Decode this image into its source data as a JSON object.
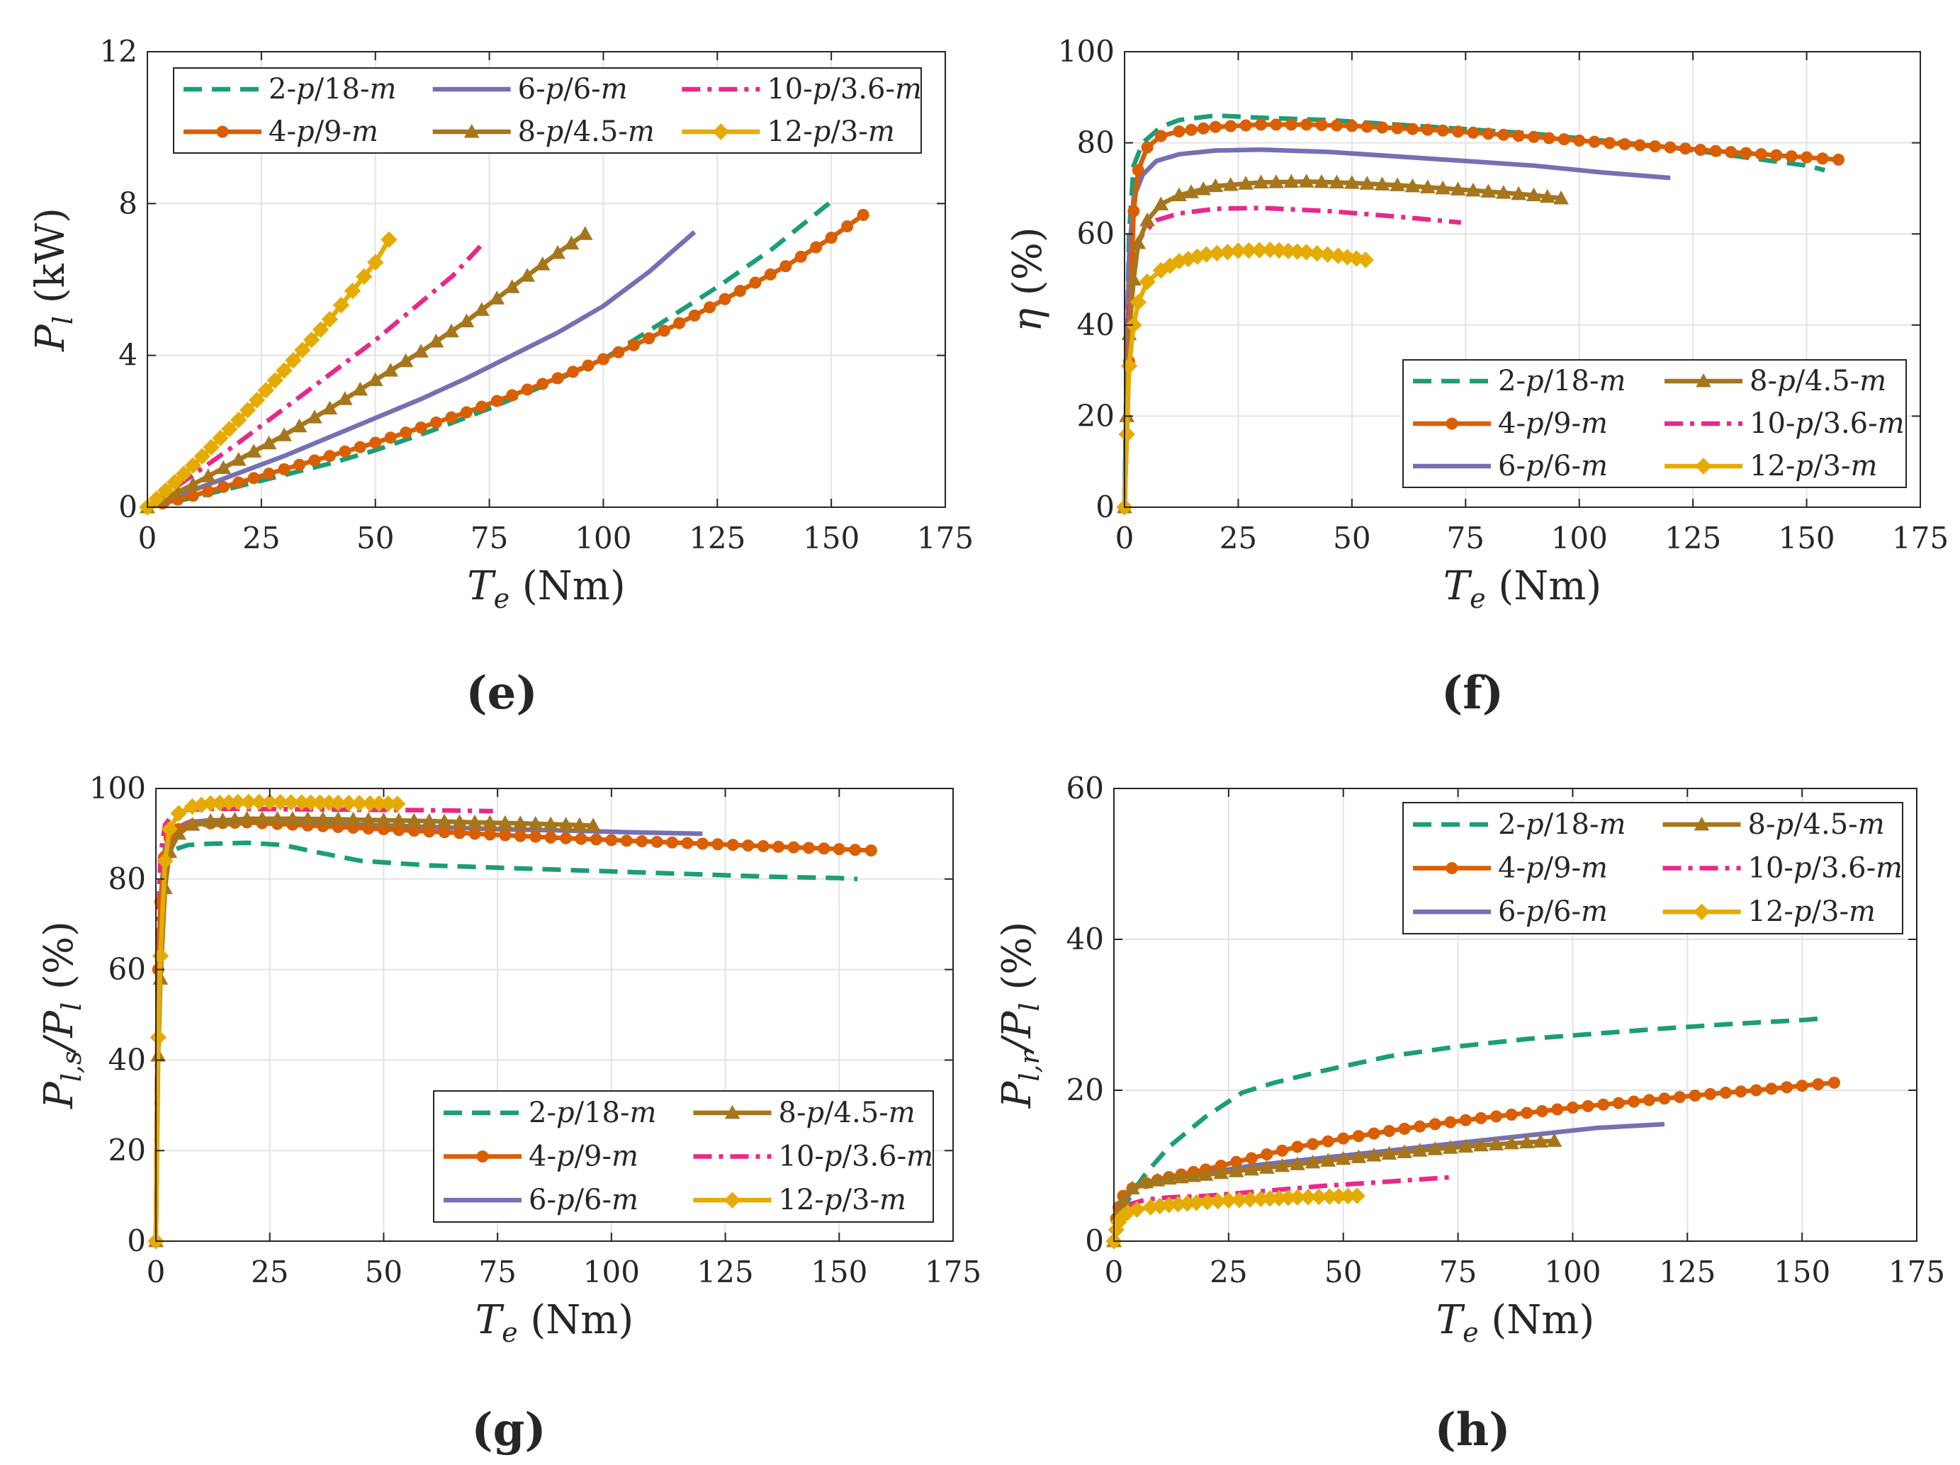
{
  "colors": {
    "2-p/18-m": "#1b9e77",
    "4-p/9-m": "#d95f02",
    "6-p/6-m": "#7570b3",
    "8-p/4.5-m": "#a6761d",
    "10-p/3.6-m": "#e7298a",
    "12-p/3-m": "#e6ab02"
  },
  "chart_data": [
    {
      "id": "e",
      "panel_label": "(e)",
      "type": "line",
      "ylabel_main": "P",
      "ylabel_sub": "l",
      "ylabel_unit": "(kW)",
      "xlabel_main": "T",
      "xlabel_sub": "e",
      "xlabel_unit": "(Nm)",
      "xlim": [
        0,
        175
      ],
      "ylim": [
        0,
        12
      ],
      "xticks": [
        0,
        25,
        50,
        75,
        100,
        125,
        150,
        175
      ],
      "yticks": [
        0,
        4,
        8,
        12
      ],
      "grid": true,
      "legend_loc": "top",
      "legend_columns": 3,
      "legend_order": [
        "2-p/18-m",
        "4-p/9-m",
        "6-p/6-m",
        "8-p/4.5-m",
        "10-p/3.6-m",
        "12-p/3-m"
      ],
      "series": [
        {
          "name": "2-p/18-m",
          "style": "dash",
          "x": [
            0,
            10,
            25,
            40,
            50,
            62,
            75,
            87,
            100,
            112,
            125,
            137,
            151
          ],
          "y": [
            0,
            0.25,
            0.7,
            1.15,
            1.5,
            2.0,
            2.6,
            3.2,
            3.9,
            4.8,
            5.8,
            6.8,
            8.15
          ]
        },
        {
          "name": "6-p/6-m",
          "style": "solid",
          "x": [
            0,
            10,
            20,
            30,
            40,
            50,
            60,
            70,
            80,
            90,
            100,
            110,
            120
          ],
          "y": [
            0,
            0.45,
            0.9,
            1.35,
            1.85,
            2.35,
            2.85,
            3.4,
            4.0,
            4.6,
            5.3,
            6.2,
            7.25
          ]
        },
        {
          "name": "10-p/3.6-m",
          "style": "dashdot",
          "x": [
            0,
            10,
            20,
            30,
            40,
            50,
            60,
            67,
            74
          ],
          "y": [
            0,
            0.85,
            1.7,
            2.6,
            3.5,
            4.4,
            5.4,
            6.1,
            7.0
          ]
        },
        {
          "name": "4-p/9-m",
          "style": "solid",
          "marker": "circle",
          "x": [
            0,
            10,
            20,
            30,
            40,
            50,
            60,
            70,
            80,
            90,
            100,
            110,
            120,
            130,
            140,
            150,
            157
          ],
          "y": [
            0,
            0.3,
            0.65,
            1.0,
            1.35,
            1.7,
            2.1,
            2.5,
            2.95,
            3.4,
            3.9,
            4.45,
            5.05,
            5.7,
            6.35,
            7.1,
            7.7
          ]
        },
        {
          "name": "8-p/4.5-m",
          "style": "solid",
          "marker": "triangle",
          "x": [
            0,
            10,
            20,
            30,
            40,
            50,
            60,
            70,
            80,
            90,
            96
          ],
          "y": [
            0,
            0.6,
            1.25,
            1.9,
            2.6,
            3.35,
            4.1,
            4.9,
            5.8,
            6.7,
            7.2
          ]
        },
        {
          "name": "12-p/3-m",
          "style": "solid",
          "marker": "diamond",
          "x": [
            0,
            10,
            20,
            30,
            40,
            45,
            50,
            53
          ],
          "y": [
            0,
            1.1,
            2.3,
            3.6,
            4.95,
            5.7,
            6.45,
            7.05
          ]
        }
      ]
    },
    {
      "id": "f",
      "panel_label": "(f)",
      "type": "line",
      "ylabel_main": "η",
      "ylabel_sub": "",
      "ylabel_unit": "(%)",
      "xlabel_main": "T",
      "xlabel_sub": "e",
      "xlabel_unit": "(Nm)",
      "xlim": [
        0,
        175
      ],
      "ylim": [
        0,
        100
      ],
      "xticks": [
        0,
        25,
        50,
        75,
        100,
        125,
        150,
        175
      ],
      "yticks": [
        0,
        20,
        40,
        60,
        80,
        100
      ],
      "grid": true,
      "legend_loc": "bottom-right",
      "legend_columns": 2,
      "legend_order": [
        "2-p/18-m",
        "4-p/9-m",
        "6-p/6-m",
        "8-p/4.5-m",
        "10-p/3.6-m",
        "12-p/3-m"
      ],
      "series": [
        {
          "name": "2-p/18-m",
          "style": "dash",
          "x": [
            0,
            0.5,
            1,
            2,
            4,
            8,
            12,
            20,
            30,
            45,
            60,
            75,
            90,
            105,
            120,
            135,
            150,
            154
          ],
          "y": [
            0,
            35,
            60,
            75,
            80,
            83.5,
            85,
            86,
            85.5,
            85,
            84,
            83,
            82,
            80.5,
            79,
            77,
            75,
            74
          ]
        },
        {
          "name": "6-p/6-m",
          "style": "solid",
          "x": [
            0,
            0.5,
            1,
            2,
            4,
            7,
            12,
            20,
            30,
            45,
            60,
            75,
            90,
            105,
            120
          ],
          "y": [
            0,
            30,
            55,
            68,
            73,
            76,
            77.5,
            78.3,
            78.5,
            78,
            77,
            76,
            75,
            73.5,
            72.3
          ]
        },
        {
          "name": "10-p/3.6-m",
          "style": "dashdot",
          "x": [
            0,
            0.5,
            1,
            2,
            4,
            7,
            12,
            20,
            30,
            45,
            60,
            74
          ],
          "y": [
            0,
            25,
            45,
            56,
            60,
            63,
            64.5,
            65.5,
            65.7,
            65,
            63.8,
            62.5
          ]
        },
        {
          "name": "4-p/9-m",
          "style": "solid",
          "marker": "circle",
          "x": [
            0,
            0.5,
            1,
            2,
            3,
            5,
            8,
            12,
            20,
            30,
            40,
            50,
            60,
            70,
            80,
            90,
            100,
            110,
            120,
            130,
            140,
            150,
            157
          ],
          "y": [
            0,
            16,
            32,
            65,
            74,
            79,
            81.5,
            82.5,
            83.5,
            84,
            84,
            83.7,
            83.2,
            82.7,
            82,
            81.3,
            80.5,
            79.7,
            79,
            78.2,
            77.5,
            76.8,
            76.3
          ]
        },
        {
          "name": "8-p/4.5-m",
          "style": "solid",
          "marker": "triangle",
          "x": [
            0,
            0.5,
            1,
            2,
            3,
            5,
            8,
            12,
            20,
            30,
            40,
            50,
            60,
            70,
            80,
            90,
            96
          ],
          "y": [
            0,
            20,
            38,
            50,
            58,
            63,
            66.5,
            68.5,
            70.5,
            71.3,
            71.5,
            71.2,
            70.7,
            70,
            69.3,
            68.5,
            67.8
          ]
        },
        {
          "name": "12-p/3-m",
          "style": "solid",
          "marker": "diamond",
          "x": [
            0,
            0.5,
            1,
            2,
            3,
            5,
            8,
            12,
            18,
            25,
            32,
            40,
            47,
            53
          ],
          "y": [
            0,
            16,
            31,
            40,
            45,
            49.5,
            52,
            54,
            55.5,
            56.3,
            56.5,
            56,
            55.2,
            54.3
          ]
        }
      ]
    },
    {
      "id": "g",
      "panel_label": "(g)",
      "type": "line",
      "ylabel_main": "P",
      "ylabel_sub": "l,s",
      "ylabel_tail": "/P",
      "ylabel_tail_sub": "l",
      "ylabel_unit": "(%)",
      "xlabel_main": "T",
      "xlabel_sub": "e",
      "xlabel_unit": "(Nm)",
      "xlim": [
        0,
        175
      ],
      "ylim": [
        0,
        100
      ],
      "xticks": [
        0,
        25,
        50,
        75,
        100,
        125,
        150,
        175
      ],
      "yticks": [
        0,
        20,
        40,
        60,
        80,
        100
      ],
      "grid": true,
      "legend_loc": "bottom-right",
      "legend_columns": 2,
      "legend_order": [
        "2-p/18-m",
        "4-p/9-m",
        "6-p/6-m",
        "8-p/4.5-m",
        "10-p/3.6-m",
        "12-p/3-m"
      ],
      "series": [
        {
          "name": "2-p/18-m",
          "style": "dash",
          "x": [
            0,
            0.5,
            1,
            2,
            4,
            7,
            12,
            20,
            28,
            35,
            45,
            60,
            75,
            90,
            105,
            120,
            135,
            150,
            154
          ],
          "y": [
            0,
            45,
            70,
            83,
            86.5,
            87.5,
            87.8,
            88,
            87.5,
            86,
            84,
            83,
            82.5,
            82,
            81.5,
            81,
            80.5,
            80.2,
            80
          ]
        },
        {
          "name": "6-p/6-m",
          "style": "solid",
          "x": [
            0,
            0.5,
            1,
            2,
            4,
            7,
            12,
            20,
            30,
            45,
            60,
            75,
            90,
            105,
            120
          ],
          "y": [
            0,
            50,
            75,
            87,
            91,
            92.5,
            93,
            93,
            92.5,
            92,
            91.5,
            91,
            90.7,
            90.3,
            90
          ]
        },
        {
          "name": "10-p/3.6-m",
          "style": "dashdot",
          "x": [
            0,
            0.5,
            1,
            2,
            4,
            7,
            12,
            20,
            30,
            45,
            60,
            74
          ],
          "y": [
            0,
            70,
            85,
            92,
            94.5,
            95.3,
            95.5,
            95.5,
            95.4,
            95.3,
            95.2,
            95
          ]
        },
        {
          "name": "4-p/9-m",
          "style": "solid",
          "marker": "circle",
          "x": [
            0,
            0.5,
            1,
            2,
            3,
            5,
            8,
            12,
            20,
            30,
            40,
            50,
            60,
            70,
            80,
            90,
            100,
            110,
            120,
            130,
            140,
            150,
            157
          ],
          "y": [
            0,
            60,
            75,
            85,
            89,
            91,
            92,
            92.3,
            92.5,
            92,
            91.5,
            91,
            90.5,
            90,
            89.5,
            89,
            88.6,
            88.2,
            87.8,
            87.4,
            87,
            86.6,
            86.3
          ]
        },
        {
          "name": "8-p/4.5-m",
          "style": "solid",
          "marker": "triangle",
          "x": [
            0,
            0.5,
            1,
            2,
            3,
            5,
            8,
            12,
            20,
            30,
            40,
            50,
            60,
            70,
            80,
            90,
            96
          ],
          "y": [
            0,
            41,
            58,
            78,
            86,
            90,
            92,
            92.8,
            93.3,
            93.3,
            93.2,
            93,
            92.8,
            92.5,
            92.3,
            92,
            91.8
          ]
        },
        {
          "name": "12-p/3-m",
          "style": "solid",
          "marker": "diamond",
          "x": [
            0,
            0.5,
            1,
            2,
            3,
            5,
            8,
            12,
            18,
            25,
            32,
            40,
            47,
            53
          ],
          "y": [
            0,
            45,
            63,
            84,
            91,
            94.5,
            96,
            96.7,
            97,
            97,
            96.9,
            96.8,
            96.7,
            96.6
          ]
        }
      ]
    },
    {
      "id": "h",
      "panel_label": "(h)",
      "type": "line",
      "ylabel_main": "P",
      "ylabel_sub": "l,r",
      "ylabel_tail": "/P",
      "ylabel_tail_sub": "l",
      "ylabel_unit": "(%)",
      "xlabel_main": "T",
      "xlabel_sub": "e",
      "xlabel_unit": "(Nm)",
      "xlim": [
        0,
        175
      ],
      "ylim": [
        0,
        60
      ],
      "xticks": [
        0,
        25,
        50,
        75,
        100,
        125,
        150,
        175
      ],
      "yticks": [
        0,
        20,
        40,
        60
      ],
      "grid": true,
      "legend_loc": "top-right",
      "legend_columns": 2,
      "legend_order": [
        "2-p/18-m",
        "4-p/9-m",
        "6-p/6-m",
        "8-p/4.5-m",
        "10-p/3.6-m",
        "12-p/3-m"
      ],
      "series": [
        {
          "name": "2-p/18-m",
          "style": "dash",
          "x": [
            0,
            1,
            2,
            4,
            7,
            12,
            20,
            28,
            35,
            45,
            60,
            75,
            90,
            105,
            120,
            135,
            150,
            154
          ],
          "y": [
            0,
            2,
            4,
            6.5,
            9,
            12.5,
            16.5,
            19.7,
            21,
            22.5,
            24.5,
            25.8,
            26.8,
            27.5,
            28.2,
            28.8,
            29.3,
            29.5
          ]
        },
        {
          "name": "6-p/6-m",
          "style": "solid",
          "x": [
            0,
            1,
            2,
            4,
            7,
            12,
            20,
            30,
            45,
            60,
            75,
            90,
            105,
            120
          ],
          "y": [
            0,
            3,
            5,
            6.8,
            7.8,
            8.5,
            9,
            10,
            11,
            12,
            13,
            14,
            15,
            15.5
          ]
        },
        {
          "name": "10-p/3.6-m",
          "style": "dashdot",
          "x": [
            0,
            1,
            2,
            4,
            7,
            12,
            20,
            30,
            45,
            60,
            74
          ],
          "y": [
            0,
            2.5,
            4,
            5,
            5.5,
            5.8,
            6,
            6.5,
            7.3,
            7.9,
            8.5
          ]
        },
        {
          "name": "4-p/9-m",
          "style": "solid",
          "marker": "circle",
          "x": [
            0,
            0.5,
            1,
            2,
            4,
            7,
            12,
            20,
            30,
            40,
            50,
            60,
            70,
            80,
            90,
            100,
            110,
            120,
            130,
            140,
            150,
            157
          ],
          "y": [
            0,
            3,
            4.5,
            6,
            7,
            7.7,
            8.5,
            9.5,
            11,
            12.5,
            13.6,
            14.6,
            15.5,
            16.3,
            17,
            17.7,
            18.3,
            18.9,
            19.5,
            20,
            20.6,
            21
          ]
        },
        {
          "name": "8-p/4.5-m",
          "style": "solid",
          "marker": "triangle",
          "x": [
            0,
            1,
            2,
            4,
            7,
            12,
            20,
            30,
            40,
            50,
            60,
            70,
            80,
            90,
            96
          ],
          "y": [
            0,
            3.5,
            5.5,
            7,
            7.8,
            8.3,
            8.8,
            9.5,
            10.2,
            10.9,
            11.6,
            12.2,
            12.7,
            13.1,
            13.3
          ]
        },
        {
          "name": "12-p/3-m",
          "style": "solid",
          "marker": "diamond",
          "x": [
            0,
            0.5,
            1,
            2,
            3,
            5,
            8,
            12,
            18,
            25,
            32,
            40,
            47,
            53
          ],
          "y": [
            0,
            1.5,
            2.5,
            3.3,
            3.8,
            4.2,
            4.5,
            4.8,
            5.1,
            5.4,
            5.6,
            5.8,
            5.9,
            6
          ]
        }
      ]
    }
  ]
}
